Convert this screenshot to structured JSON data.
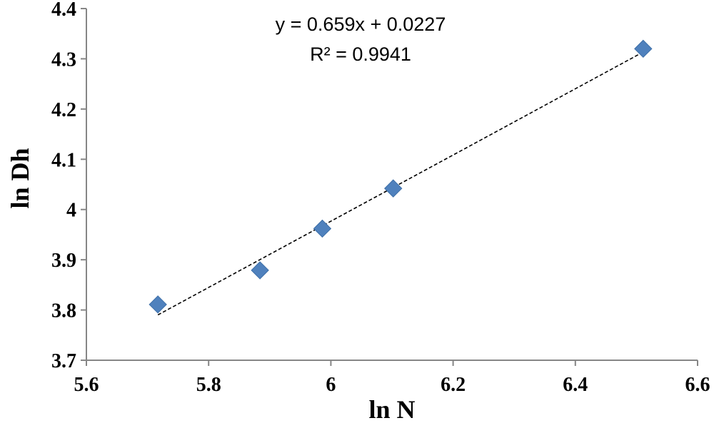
{
  "chart_data": {
    "type": "scatter",
    "title": "",
    "xlabel": "ln N",
    "ylabel": "ln Dh",
    "xlim": [
      5.6,
      6.6
    ],
    "ylim": [
      3.7,
      4.4
    ],
    "x_ticks": [
      "5.6",
      "5.8",
      "6",
      "6.2",
      "6.4",
      "6.6"
    ],
    "y_ticks": [
      "3.7",
      "3.8",
      "3.9",
      "4",
      "4.1",
      "4.2",
      "4.3",
      "4.4"
    ],
    "grid": false,
    "series": [
      {
        "marker": "diamond",
        "color": "#4f81bd",
        "points": [
          {
            "x": 5.717,
            "y": 3.811
          },
          {
            "x": 5.884,
            "y": 3.879
          },
          {
            "x": 5.986,
            "y": 3.962
          },
          {
            "x": 6.102,
            "y": 4.042
          },
          {
            "x": 6.511,
            "y": 4.32
          }
        ]
      }
    ],
    "trendline": {
      "style": "dashed",
      "color": "#000000",
      "x_range": [
        5.717,
        6.511
      ],
      "slope": 0.659,
      "intercept": 0.0227,
      "equation": "y = 0.659x + 0.0227",
      "r_squared": "R² = 0.9941"
    },
    "axis_color": "#868686"
  }
}
